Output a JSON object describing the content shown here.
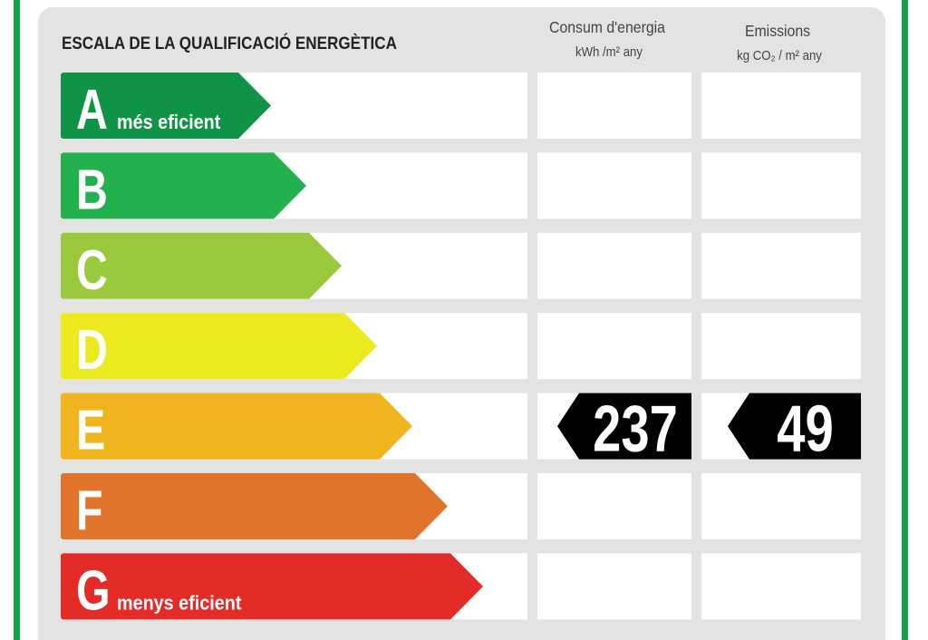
{
  "title": "ESCALA DE LA QUALIFICACIÓ ENERGÈTICA",
  "columns": [
    {
      "label": "Consum d'energia",
      "unit": "kWh /m² any"
    },
    {
      "label": "Emissions",
      "unit": "kg CO₂ / m² any"
    }
  ],
  "classes": [
    {
      "letter": "A",
      "note": "més eficient",
      "color": "#0f9447"
    },
    {
      "letter": "B",
      "color": "#22b14c"
    },
    {
      "letter": "C",
      "color": "#9bc93d"
    },
    {
      "letter": "D",
      "color": "#ece91f"
    },
    {
      "letter": "E",
      "color": "#f0b51e"
    },
    {
      "letter": "F",
      "color": "#e0742a"
    },
    {
      "letter": "G",
      "note": "menys eficient",
      "color": "#e32b28"
    }
  ],
  "rating": {
    "class": "E",
    "values": [
      237,
      49
    ]
  }
}
